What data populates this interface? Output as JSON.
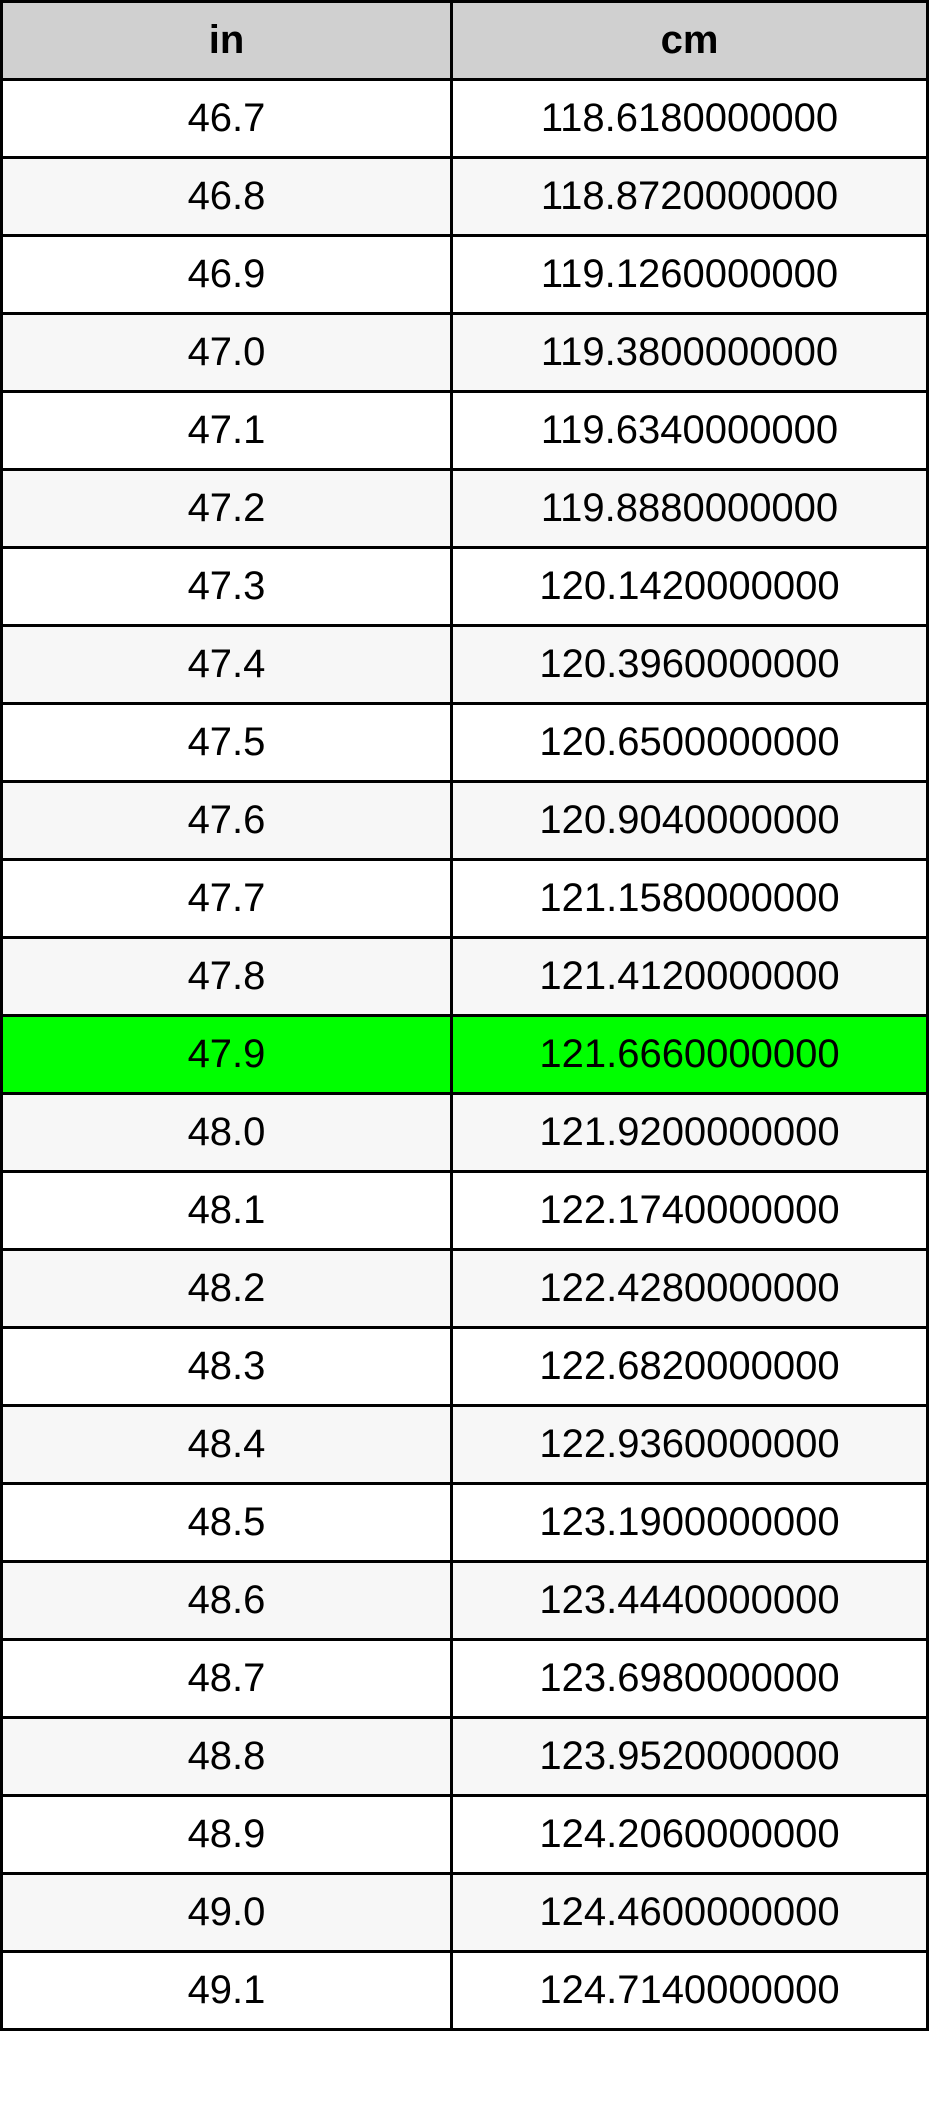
{
  "table": {
    "headers": [
      "in",
      "cm"
    ],
    "highlight_color": "#00ff00",
    "highlighted_row": "47.9",
    "rows": [
      [
        "46.7",
        "118.6180000000"
      ],
      [
        "46.8",
        "118.8720000000"
      ],
      [
        "46.9",
        "119.1260000000"
      ],
      [
        "47.0",
        "119.3800000000"
      ],
      [
        "47.1",
        "119.6340000000"
      ],
      [
        "47.2",
        "119.8880000000"
      ],
      [
        "47.3",
        "120.1420000000"
      ],
      [
        "47.4",
        "120.3960000000"
      ],
      [
        "47.5",
        "120.6500000000"
      ],
      [
        "47.6",
        "120.9040000000"
      ],
      [
        "47.7",
        "121.1580000000"
      ],
      [
        "47.8",
        "121.4120000000"
      ],
      [
        "47.9",
        "121.6660000000"
      ],
      [
        "48.0",
        "121.9200000000"
      ],
      [
        "48.1",
        "122.1740000000"
      ],
      [
        "48.2",
        "122.4280000000"
      ],
      [
        "48.3",
        "122.6820000000"
      ],
      [
        "48.4",
        "122.9360000000"
      ],
      [
        "48.5",
        "123.1900000000"
      ],
      [
        "48.6",
        "123.4440000000"
      ],
      [
        "48.7",
        "123.6980000000"
      ],
      [
        "48.8",
        "123.9520000000"
      ],
      [
        "48.9",
        "124.2060000000"
      ],
      [
        "49.0",
        "124.4600000000"
      ],
      [
        "49.1",
        "124.7140000000"
      ]
    ]
  }
}
